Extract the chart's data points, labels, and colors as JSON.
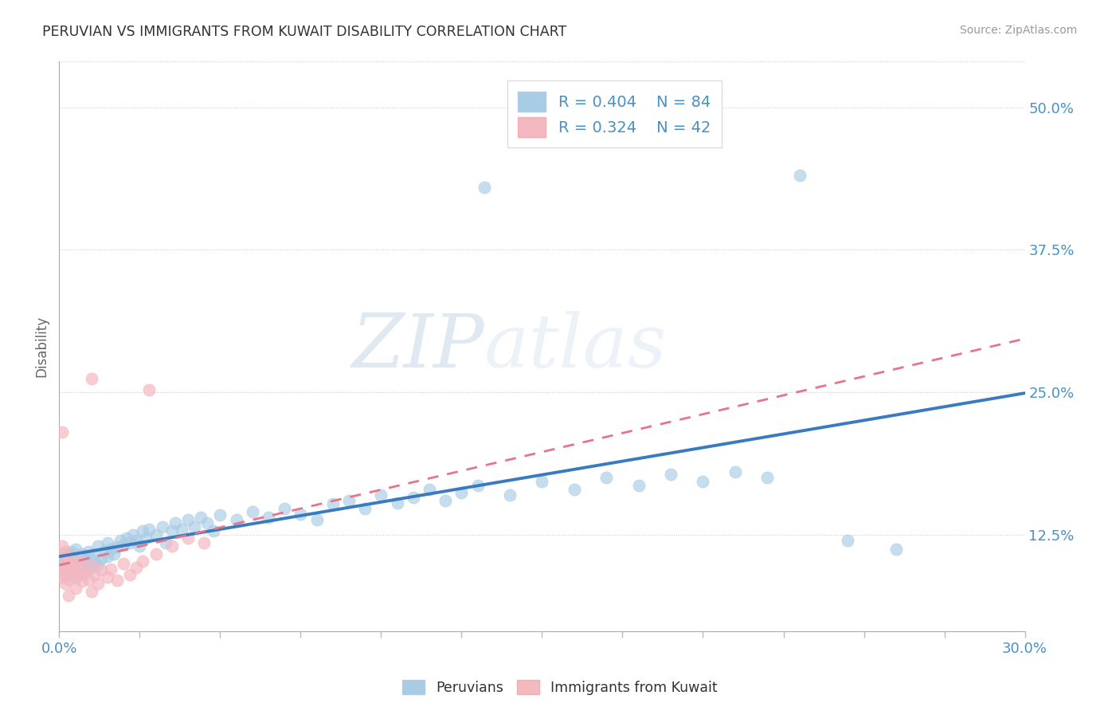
{
  "title": "PERUVIAN VS IMMIGRANTS FROM KUWAIT DISABILITY CORRELATION CHART",
  "source": "Source: ZipAtlas.com",
  "ylabel": "Disability",
  "ytick_labels": [
    "12.5%",
    "25.0%",
    "37.5%",
    "50.0%"
  ],
  "ytick_values": [
    0.125,
    0.25,
    0.375,
    0.5
  ],
  "xlim": [
    0.0,
    0.3
  ],
  "ylim": [
    0.04,
    0.54
  ],
  "blue_color": "#a8cce4",
  "pink_color": "#f4b8c1",
  "line_blue": "#3a7abf",
  "line_pink": "#e8748a",
  "watermark_zip": "ZIP",
  "watermark_atlas": "atlas",
  "peruvian_points": [
    [
      0.001,
      0.095
    ],
    [
      0.001,
      0.1
    ],
    [
      0.001,
      0.105
    ],
    [
      0.002,
      0.09
    ],
    [
      0.002,
      0.098
    ],
    [
      0.002,
      0.105
    ],
    [
      0.003,
      0.092
    ],
    [
      0.003,
      0.1
    ],
    [
      0.003,
      0.108
    ],
    [
      0.004,
      0.095
    ],
    [
      0.004,
      0.102
    ],
    [
      0.004,
      0.11
    ],
    [
      0.005,
      0.088
    ],
    [
      0.005,
      0.096
    ],
    [
      0.005,
      0.112
    ],
    [
      0.006,
      0.093
    ],
    [
      0.006,
      0.101
    ],
    [
      0.007,
      0.097
    ],
    [
      0.007,
      0.108
    ],
    [
      0.008,
      0.094
    ],
    [
      0.008,
      0.103
    ],
    [
      0.009,
      0.099
    ],
    [
      0.009,
      0.11
    ],
    [
      0.01,
      0.096
    ],
    [
      0.01,
      0.107
    ],
    [
      0.011,
      0.102
    ],
    [
      0.012,
      0.098
    ],
    [
      0.012,
      0.115
    ],
    [
      0.013,
      0.104
    ],
    [
      0.014,
      0.11
    ],
    [
      0.015,
      0.106
    ],
    [
      0.015,
      0.118
    ],
    [
      0.016,
      0.112
    ],
    [
      0.017,
      0.108
    ],
    [
      0.018,
      0.114
    ],
    [
      0.019,
      0.12
    ],
    [
      0.02,
      0.116
    ],
    [
      0.021,
      0.122
    ],
    [
      0.022,
      0.118
    ],
    [
      0.023,
      0.125
    ],
    [
      0.024,
      0.12
    ],
    [
      0.025,
      0.115
    ],
    [
      0.026,
      0.128
    ],
    [
      0.027,
      0.122
    ],
    [
      0.028,
      0.13
    ],
    [
      0.03,
      0.125
    ],
    [
      0.032,
      0.132
    ],
    [
      0.033,
      0.118
    ],
    [
      0.035,
      0.128
    ],
    [
      0.036,
      0.135
    ],
    [
      0.038,
      0.13
    ],
    [
      0.04,
      0.138
    ],
    [
      0.042,
      0.132
    ],
    [
      0.044,
      0.14
    ],
    [
      0.046,
      0.135
    ],
    [
      0.048,
      0.128
    ],
    [
      0.05,
      0.142
    ],
    [
      0.055,
      0.138
    ],
    [
      0.06,
      0.145
    ],
    [
      0.065,
      0.14
    ],
    [
      0.07,
      0.148
    ],
    [
      0.075,
      0.143
    ],
    [
      0.08,
      0.138
    ],
    [
      0.085,
      0.152
    ],
    [
      0.09,
      0.155
    ],
    [
      0.095,
      0.148
    ],
    [
      0.1,
      0.16
    ],
    [
      0.105,
      0.153
    ],
    [
      0.11,
      0.158
    ],
    [
      0.115,
      0.165
    ],
    [
      0.12,
      0.155
    ],
    [
      0.125,
      0.162
    ],
    [
      0.13,
      0.168
    ],
    [
      0.14,
      0.16
    ],
    [
      0.15,
      0.172
    ],
    [
      0.16,
      0.165
    ],
    [
      0.17,
      0.175
    ],
    [
      0.18,
      0.168
    ],
    [
      0.19,
      0.178
    ],
    [
      0.2,
      0.172
    ],
    [
      0.21,
      0.18
    ],
    [
      0.22,
      0.175
    ],
    [
      0.132,
      0.43
    ],
    [
      0.23,
      0.44
    ],
    [
      0.245,
      0.12
    ],
    [
      0.26,
      0.112
    ]
  ],
  "kuwait_points": [
    [
      0.001,
      0.115
    ],
    [
      0.001,
      0.108
    ],
    [
      0.001,
      0.095
    ],
    [
      0.001,
      0.088
    ],
    [
      0.002,
      0.1
    ],
    [
      0.002,
      0.092
    ],
    [
      0.002,
      0.11
    ],
    [
      0.002,
      0.082
    ],
    [
      0.003,
      0.097
    ],
    [
      0.003,
      0.105
    ],
    [
      0.003,
      0.086
    ],
    [
      0.004,
      0.092
    ],
    [
      0.004,
      0.1
    ],
    [
      0.005,
      0.095
    ],
    [
      0.005,
      0.088
    ],
    [
      0.005,
      0.078
    ],
    [
      0.006,
      0.102
    ],
    [
      0.006,
      0.09
    ],
    [
      0.007,
      0.096
    ],
    [
      0.007,
      0.084
    ],
    [
      0.008,
      0.092
    ],
    [
      0.009,
      0.086
    ],
    [
      0.01,
      0.098
    ],
    [
      0.01,
      0.075
    ],
    [
      0.011,
      0.09
    ],
    [
      0.012,
      0.082
    ],
    [
      0.013,
      0.094
    ],
    [
      0.015,
      0.088
    ],
    [
      0.016,
      0.095
    ],
    [
      0.018,
      0.085
    ],
    [
      0.02,
      0.1
    ],
    [
      0.022,
      0.09
    ],
    [
      0.024,
      0.096
    ],
    [
      0.026,
      0.102
    ],
    [
      0.03,
      0.108
    ],
    [
      0.035,
      0.115
    ],
    [
      0.04,
      0.122
    ],
    [
      0.045,
      0.118
    ],
    [
      0.001,
      0.215
    ],
    [
      0.01,
      0.262
    ],
    [
      0.028,
      0.252
    ],
    [
      0.003,
      0.072
    ]
  ]
}
